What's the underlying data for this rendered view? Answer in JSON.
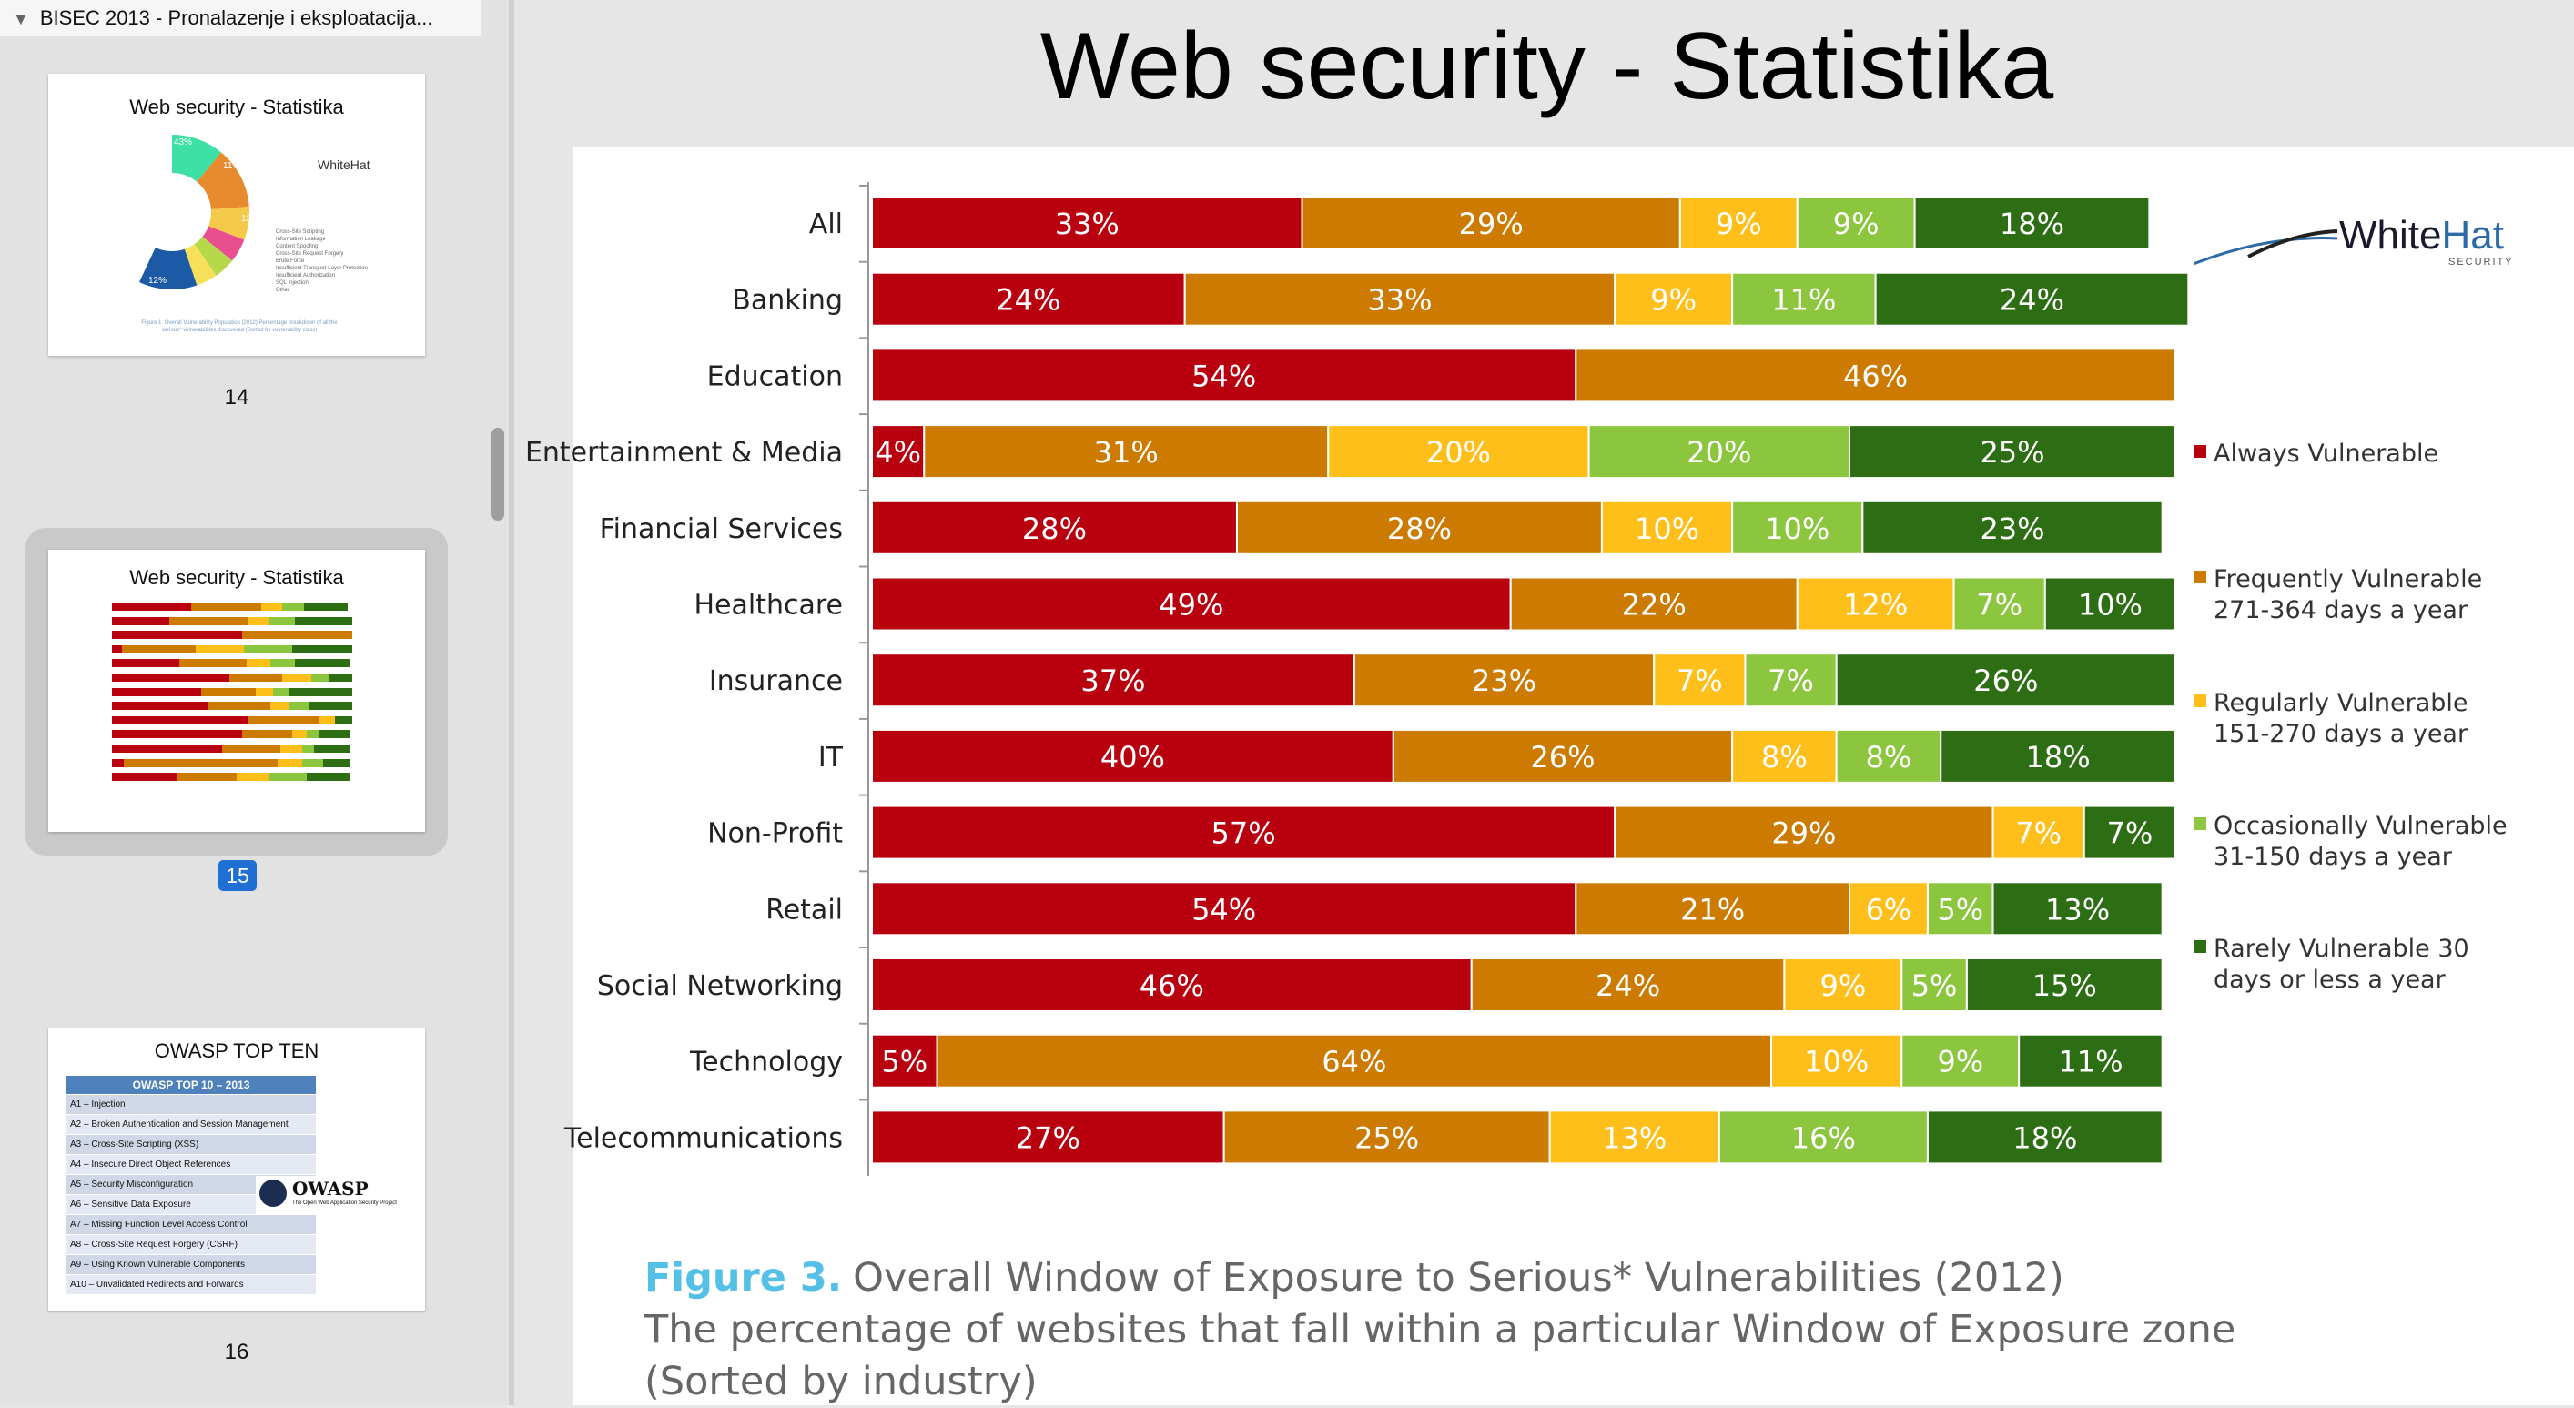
{
  "window": {
    "doc_title": "BISEC 2013 - Pronalazenje i eksploatacija..."
  },
  "sidebar": {
    "thumbnails": [
      {
        "page": "14",
        "title": "Web security - Statistika"
      },
      {
        "page": "15",
        "title": "Web security - Statistika",
        "selected": true
      },
      {
        "page": "16",
        "title": "OWASP TOP TEN"
      }
    ],
    "thumb14": {
      "logo": "WhiteHat",
      "pct_labels": [
        "43%",
        "11%",
        "13%",
        "12%"
      ],
      "legend": [
        "Cross-Site Scripting",
        "Information Leakage",
        "Content Spoofing",
        "Cross-Site Request Forgery",
        "Brute Force",
        "Insufficient Transport Layer Protection",
        "Insufficient Authorization",
        "SQL Injection",
        "Other"
      ],
      "caption": "Figure 1. Overall Vulnerability Population (2012) Percentage breakdown of all the serious* vulnerabilities discovered (Sorted by vulnerability class)"
    },
    "thumb16": {
      "table_header": "OWASP TOP 10 – 2013",
      "rows": [
        "A1 – Injection",
        "A2 – Broken Authentication and Session Management",
        "A3 – Cross-Site Scripting (XSS)",
        "A4 – Insecure Direct Object References",
        "A5 – Security Misconfiguration",
        "A6 – Sensitive Data Exposure",
        "A7 – Missing Function Level Access Control",
        "A8 – Cross-Site Request Forgery (CSRF)",
        "A9 – Using Known Vulnerable Components",
        "A10 – Unvalidated Redirects and Forwards"
      ],
      "logo": "OWASP",
      "logo_sub": "The Open Web Application Security Project"
    }
  },
  "slide": {
    "title": "Web security - Statistika",
    "logo": {
      "brand_a": "White",
      "brand_b": "Hat",
      "sub": "SECURITY"
    },
    "caption": {
      "fig_label": "Figure 3.",
      "line1": "Overall Window of Exposure to Serious* Vulnerabilities (2012)",
      "line2": "The percentage of websites that fall within a particular Window of Exposure zone",
      "line3": "(Sorted by industry)"
    }
  },
  "chart_data": {
    "type": "bar",
    "orientation": "horizontal",
    "stacked": true,
    "categories": [
      "All",
      "Banking",
      "Education",
      "Entertainment & Media",
      "Financial Services",
      "Healthcare",
      "Insurance",
      "IT",
      "Non-Profit",
      "Retail",
      "Social Networking",
      "Technology",
      "Telecommunications"
    ],
    "series": [
      {
        "name": "Always Vulnerable",
        "color": "#b8000f",
        "values": [
          33,
          24,
          54,
          4,
          28,
          49,
          37,
          40,
          57,
          54,
          46,
          5,
          27
        ]
      },
      {
        "name": "Frequently Vulnerable 271-364 days a year",
        "color": "#cc7a00",
        "values": [
          29,
          33,
          46,
          31,
          28,
          22,
          23,
          26,
          29,
          21,
          24,
          64,
          25
        ]
      },
      {
        "name": "Regularly Vulnerable 151-270 days a year",
        "color": "#ffbf1a",
        "values": [
          9,
          9,
          0,
          20,
          10,
          12,
          7,
          8,
          7,
          6,
          9,
          10,
          13
        ]
      },
      {
        "name": "Occasionally Vulnerable 31-150 days a year",
        "color": "#8cc63f",
        "values": [
          9,
          11,
          0,
          20,
          10,
          7,
          7,
          8,
          0,
          5,
          5,
          9,
          16
        ]
      },
      {
        "name": "Rarely Vulnerable 30 days or less a year",
        "color": "#2d6e14",
        "values": [
          18,
          24,
          0,
          25,
          23,
          10,
          26,
          18,
          7,
          13,
          15,
          11,
          18
        ]
      }
    ],
    "legend": [
      [
        "Always Vulnerable"
      ],
      [
        "Frequently Vulnerable",
        "271-364 days a year"
      ],
      [
        "Regularly Vulnerable",
        "151-270 days a year"
      ],
      [
        "Occasionally Vulnerable",
        "31-150 days a year"
      ],
      [
        "Rarely Vulnerable 30",
        "days or less a year"
      ]
    ],
    "legend_position": "right",
    "data_labels": true,
    "value_suffix": "%"
  }
}
